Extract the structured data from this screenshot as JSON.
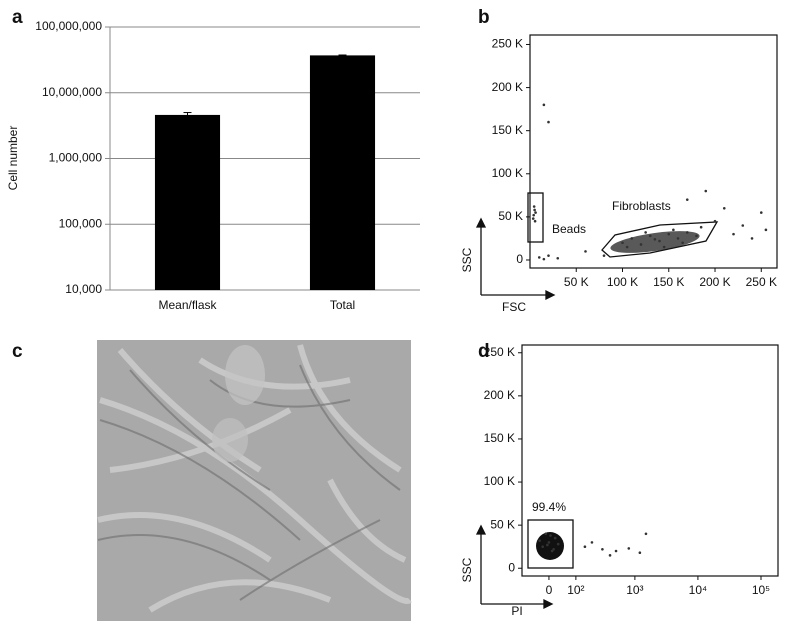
{
  "chart_data": [
    {
      "type": "bar",
      "panel": "a",
      "ylabel": "Cell number",
      "categories": [
        "Mean/flask",
        "Total"
      ],
      "values": [
        4600000,
        37000000
      ],
      "errors": [
        400000,
        500000
      ],
      "color": "#000000",
      "log_scale": true,
      "ylim": [
        10000,
        100000000
      ],
      "yticks": [
        {
          "value": 10000,
          "label": "10,000"
        },
        {
          "value": 100000,
          "label": "100,000"
        },
        {
          "value": 1000000,
          "label": "1,000,000"
        },
        {
          "value": 10000000,
          "label": "10,000,000"
        },
        {
          "value": 100000000,
          "label": "100,000,000"
        }
      ],
      "grid": true
    },
    {
      "type": "scatter",
      "panel": "b",
      "xlabel": "FSC",
      "ylabel": "SSC",
      "annotations": [
        "Beads",
        "Fibroblasts"
      ],
      "color": "#333333",
      "xlim": [
        0,
        267000
      ],
      "ylim": [
        -9300,
        261000
      ],
      "xticks": [
        {
          "value": 50000,
          "label": "50 K"
        },
        {
          "value": 100000,
          "label": "100 K"
        },
        {
          "value": 150000,
          "label": "150 K"
        },
        {
          "value": 200000,
          "label": "200 K"
        },
        {
          "value": 250000,
          "label": "250 K"
        }
      ],
      "yticks": [
        0,
        {
          "value": 50000,
          "label": "50 K"
        },
        {
          "value": 100000,
          "label": "100 K"
        },
        {
          "value": 150000,
          "label": "150 K"
        },
        {
          "value": 200000,
          "label": "200 K"
        },
        {
          "value": 250000,
          "label": "250 K"
        }
      ],
      "x": [
        4000,
        5000,
        3500,
        6000,
        4500,
        5500,
        100000,
        110000,
        120000,
        130000,
        140000,
        150000,
        160000,
        170000,
        180000,
        125000,
        145000,
        165000,
        185000,
        105000,
        135000,
        155000,
        10000,
        15000,
        20000,
        30000,
        15000,
        20000,
        210000,
        230000,
        250000,
        220000,
        240000,
        200000,
        170000,
        60000,
        80000,
        190000,
        255000
      ],
      "y": [
        52000,
        58000,
        48000,
        55000,
        62000,
        45000,
        20000,
        25000,
        18000,
        28000,
        22000,
        30000,
        25000,
        32000,
        28000,
        32000,
        15000,
        20000,
        38000,
        15000,
        24000,
        35000,
        3000,
        1000,
        5000,
        2000,
        180000,
        160000,
        60000,
        40000,
        55000,
        30000,
        25000,
        45000,
        70000,
        10000,
        5000,
        80000,
        35000
      ]
    },
    {
      "type": "scatter",
      "panel": "d",
      "xlabel": "PI",
      "ylabel": "SSC",
      "xscale": "biexponential",
      "annotations": [
        "99.4%"
      ],
      "color": "#333333",
      "xlim": [
        -100,
        186000
      ],
      "ylim": [
        -9000,
        259000
      ],
      "xticks": [
        0,
        {
          "value": 100,
          "label": "10²"
        },
        {
          "value": 1000,
          "label": "10³"
        },
        {
          "value": 10000,
          "label": "10⁴"
        },
        {
          "value": 100000,
          "label": "10⁵"
        }
      ],
      "yticks": [
        0,
        {
          "value": 50000,
          "label": "50 K"
        },
        {
          "value": 100000,
          "label": "100 K"
        },
        {
          "value": 150000,
          "label": "150 K"
        },
        {
          "value": 200000,
          "label": "200 K"
        },
        {
          "value": 250000,
          "label": "250 K"
        }
      ],
      "x": [
        0,
        -20,
        20,
        10,
        -10,
        30,
        -30,
        5,
        15,
        -5,
        150,
        300,
        500,
        800,
        1500,
        1200,
        200,
        400
      ],
      "y": [
        30000,
        25000,
        35000,
        20000,
        40000,
        28000,
        32000,
        38000,
        22000,
        27000,
        25000,
        22000,
        20000,
        23000,
        40000,
        18000,
        30000,
        15000
      ]
    }
  ],
  "image_panel": {
    "panel": "c"
  }
}
